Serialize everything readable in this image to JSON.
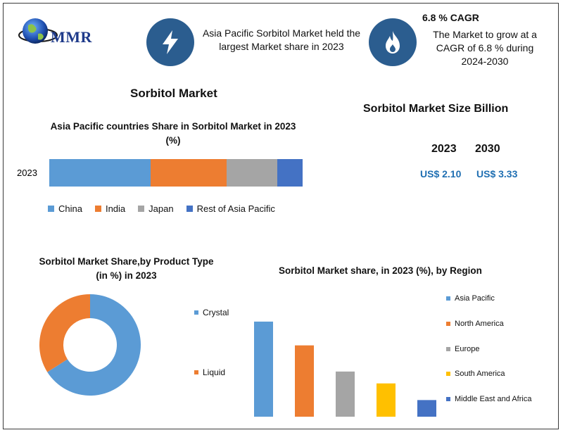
{
  "header": {
    "logo_text": "MMR",
    "highlight_text": "Asia Pacific Sorbitol Market held the largest Market share in 2023",
    "cagr_title": "6.8 % CAGR",
    "cagr_text": "The Market to grow at a CAGR of 6.8 % during 2024-2030"
  },
  "icons": {
    "highlight": "lightning-icon",
    "cagr": "flame-icon",
    "logo": "globe-icon"
  },
  "main_title": "Sorbitol Market",
  "market_size": {
    "title": "Sorbitol Market Size Billion",
    "years": [
      "2023",
      "2030"
    ],
    "values": [
      "US$ 2.10",
      "US$ 3.33"
    ]
  },
  "colors": {
    "china": "#5b9bd5",
    "india": "#ed7d31",
    "japan": "#a5a5a5",
    "rest": "#4472c4",
    "south_america": "#ffc000",
    "value_blue": "#1f6fb2",
    "icon_circle": "#2b5d8f"
  },
  "chart_data": [
    {
      "type": "bar",
      "orientation": "horizontal-stacked",
      "title": "Asia Pacific countries Share in Sorbitol Market  in 2023 (%)",
      "categories": [
        "2023"
      ],
      "series": [
        {
          "name": "China",
          "values": [
            40
          ]
        },
        {
          "name": "India",
          "values": [
            30
          ]
        },
        {
          "name": "Japan",
          "values": [
            20
          ]
        },
        {
          "name": "Rest of Asia Pacific",
          "values": [
            10
          ]
        }
      ],
      "legend": "bottom"
    },
    {
      "type": "pie",
      "variant": "donut",
      "title": "Sorbitol Market Share,by Product Type   (in %) in 2023",
      "labels": [
        "Crystal",
        "Liquid"
      ],
      "values": [
        66,
        34
      ],
      "legend": "right"
    },
    {
      "type": "bar",
      "title": "Sorbitol Market share, in 2023 (%), by Region",
      "categories": [
        "Asia Pacific",
        "North America",
        "Europe",
        "South America",
        "Middle East and Africa"
      ],
      "values": [
        40,
        30,
        19,
        14,
        7
      ],
      "ylim": [
        0,
        45
      ],
      "legend": "right"
    }
  ]
}
